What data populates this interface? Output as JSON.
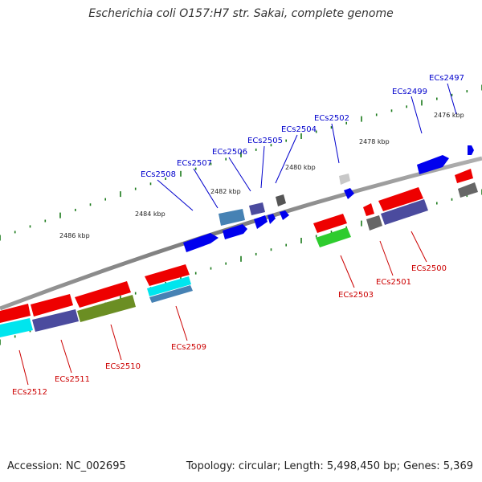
{
  "title": "Escherichia coli O157:H7 str. Sakai, complete genome",
  "footer": {
    "accession": "Accession: NC_002695",
    "summary": "Topology: circular; Length: 5,498,450 bp; Genes: 5,369"
  },
  "ruler": {
    "tick_labels": [
      "2476 kbp",
      "2478 kbp",
      "2480 kbp",
      "2482 kbp",
      "2484 kbp",
      "2486 kbp"
    ]
  },
  "genes": {
    "forward": [
      "ECs2497",
      "ECs2499",
      "ECs2502",
      "ECs2504",
      "ECs2505",
      "ECs2506",
      "ECs2507",
      "ECs2508"
    ],
    "reverse": [
      "ECs2500",
      "ECs2501",
      "ECs2503",
      "ECs2509",
      "ECs2510",
      "ECs2511",
      "ECs2512"
    ]
  },
  "colors": {
    "forward_label": "#0000cc",
    "reverse_label": "#cc0000",
    "backbone": "#808080",
    "tick": "#1a7a1a",
    "gene_blue": "#0000ee",
    "gene_red": "#ee0000",
    "gene_cyan": "#00e5ee",
    "gene_purple": "#4b4b9e",
    "gene_olive": "#6b8e23",
    "gene_green": "#2ecc2e",
    "gene_grey": "#666666",
    "gene_steel": "#4682b4"
  }
}
